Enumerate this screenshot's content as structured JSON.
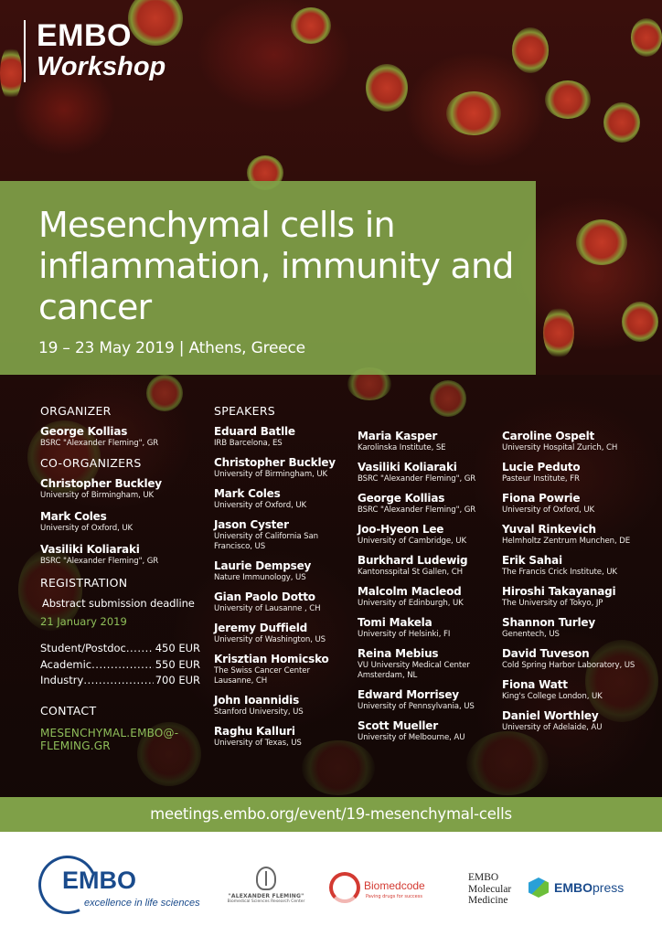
{
  "header": {
    "brand_line1": "EMBO",
    "brand_line2": "Workshop"
  },
  "title": "Mesenchymal cells in inflammation, immunity and cancer",
  "dates": "19 – 23 May 2019 | Athens, Greece",
  "organizer": {
    "heading": "ORGANIZER",
    "people": [
      {
        "name": "George Kollias",
        "affiliation": "BSRC \"Alexander Fleming\", GR"
      }
    ]
  },
  "co_organizers": {
    "heading": "CO-ORGANIZERS",
    "people": [
      {
        "name": "Christopher Buckley",
        "affiliation": "University of Birmingham, UK"
      },
      {
        "name": "Mark Coles",
        "affiliation": "University of Oxford, UK"
      },
      {
        "name": "Vasiliki Koliaraki",
        "affiliation": "BSRC \"Alexander Fleming\", GR"
      }
    ]
  },
  "registration": {
    "heading": "REGISTRATION",
    "deadline_label": "Abstract submission deadline",
    "deadline_date": "21 January 2019",
    "fees": [
      {
        "label": "Student/Postdoc",
        "value": "450 EUR"
      },
      {
        "label": "Academic",
        "value": "550 EUR"
      },
      {
        "label": "Industry",
        "value": "700 EUR"
      }
    ]
  },
  "contact": {
    "heading": "CONTACT",
    "email": "MESENCHYMAL.EMBO@-FLEMING.GR"
  },
  "speakers": {
    "heading": "SPEAKERS",
    "col1": [
      {
        "name": "Eduard Batlle",
        "affiliation": "IRB Barcelona, ES"
      },
      {
        "name": "Christopher Buckley",
        "affiliation": "University of Birmingham, UK"
      },
      {
        "name": "Mark Coles",
        "affiliation": "University of Oxford, UK"
      },
      {
        "name": "Jason Cyster",
        "affiliation": "University of California San Francisco, US"
      },
      {
        "name": "Laurie Dempsey",
        "affiliation": "Nature Immunology, US"
      },
      {
        "name": "Gian Paolo Dotto",
        "affiliation": "University of Lausanne , CH"
      },
      {
        "name": "Jeremy Duffield",
        "affiliation": "University of Washington, US"
      },
      {
        "name": "Krisztian Homicsko",
        "affiliation": "The Swiss Cancer Center Lausanne, CH"
      },
      {
        "name": "John Ioannidis",
        "affiliation": "Stanford University, US"
      },
      {
        "name": "Raghu Kalluri",
        "affiliation": "University of Texas, US"
      }
    ],
    "col2": [
      {
        "name": "Maria Kasper",
        "affiliation": "Karolinska Institute, SE"
      },
      {
        "name": "Vasiliki Koliaraki",
        "affiliation": "BSRC \"Alexander Fleming\", GR"
      },
      {
        "name": "George Kollias",
        "affiliation": "BSRC \"Alexander Fleming\", GR"
      },
      {
        "name": "Joo-Hyeon Lee",
        "affiliation": "University of Cambridge, UK"
      },
      {
        "name": "Burkhard Ludewig",
        "affiliation": "Kantonsspital St Gallen, CH"
      },
      {
        "name": "Malcolm Macleod",
        "affiliation": "University of Edinburgh, UK"
      },
      {
        "name": "Tomi Makela",
        "affiliation": "University of Helsinki, FI"
      },
      {
        "name": "Reina Mebius",
        "affiliation": "VU University Medical Center Amsterdam, NL"
      },
      {
        "name": "Edward Morrisey",
        "affiliation": "University of Pennsylvania, US"
      },
      {
        "name": "Scott Mueller",
        "affiliation": "University of Melbourne, AU"
      }
    ],
    "col3": [
      {
        "name": "Caroline Ospelt",
        "affiliation": "University Hospital Zurich, CH"
      },
      {
        "name": "Lucie Peduto",
        "affiliation": "Pasteur Institute, FR"
      },
      {
        "name": "Fiona Powrie",
        "affiliation": "University of Oxford, UK"
      },
      {
        "name": "Yuval Rinkevich",
        "affiliation": "Helmholtz Zentrum Munchen, DE"
      },
      {
        "name": "Erik Sahai",
        "affiliation": "The Francis Crick Institute, UK"
      },
      {
        "name": "Hiroshi Takayanagi",
        "affiliation": "The University of Tokyo, JP"
      },
      {
        "name": "Shannon Turley",
        "affiliation": "Genentech, US"
      },
      {
        "name": "David Tuveson",
        "affiliation": "Cold Spring Harbor Laboratory, US"
      },
      {
        "name": "Fiona Watt",
        "affiliation": "King's College London, UK"
      },
      {
        "name": "Daniel Worthley",
        "affiliation": "University of Adelaide, AU"
      }
    ]
  },
  "url": "meetings.embo.org/event/19-mesenchymal-cells",
  "footer": {
    "embo_word": "EMBO",
    "embo_tagline": "excellence in life sciences",
    "fleming_name": "\"ALEXANDER FLEMING\"",
    "fleming_sub": "Biomedical Sciences Research Center",
    "biomed_word": "Biomedcode",
    "biomed_tag": "Paving drugs for success",
    "emm_line1": "EMBO",
    "emm_line2": "Molecular",
    "emm_line3": "Medicine",
    "press_bold": "EMBO",
    "press_rest": "press"
  },
  "colors": {
    "accent_green": "#7fa048",
    "text_green": "#8fbf5a",
    "embo_blue": "#1a4b8c"
  }
}
